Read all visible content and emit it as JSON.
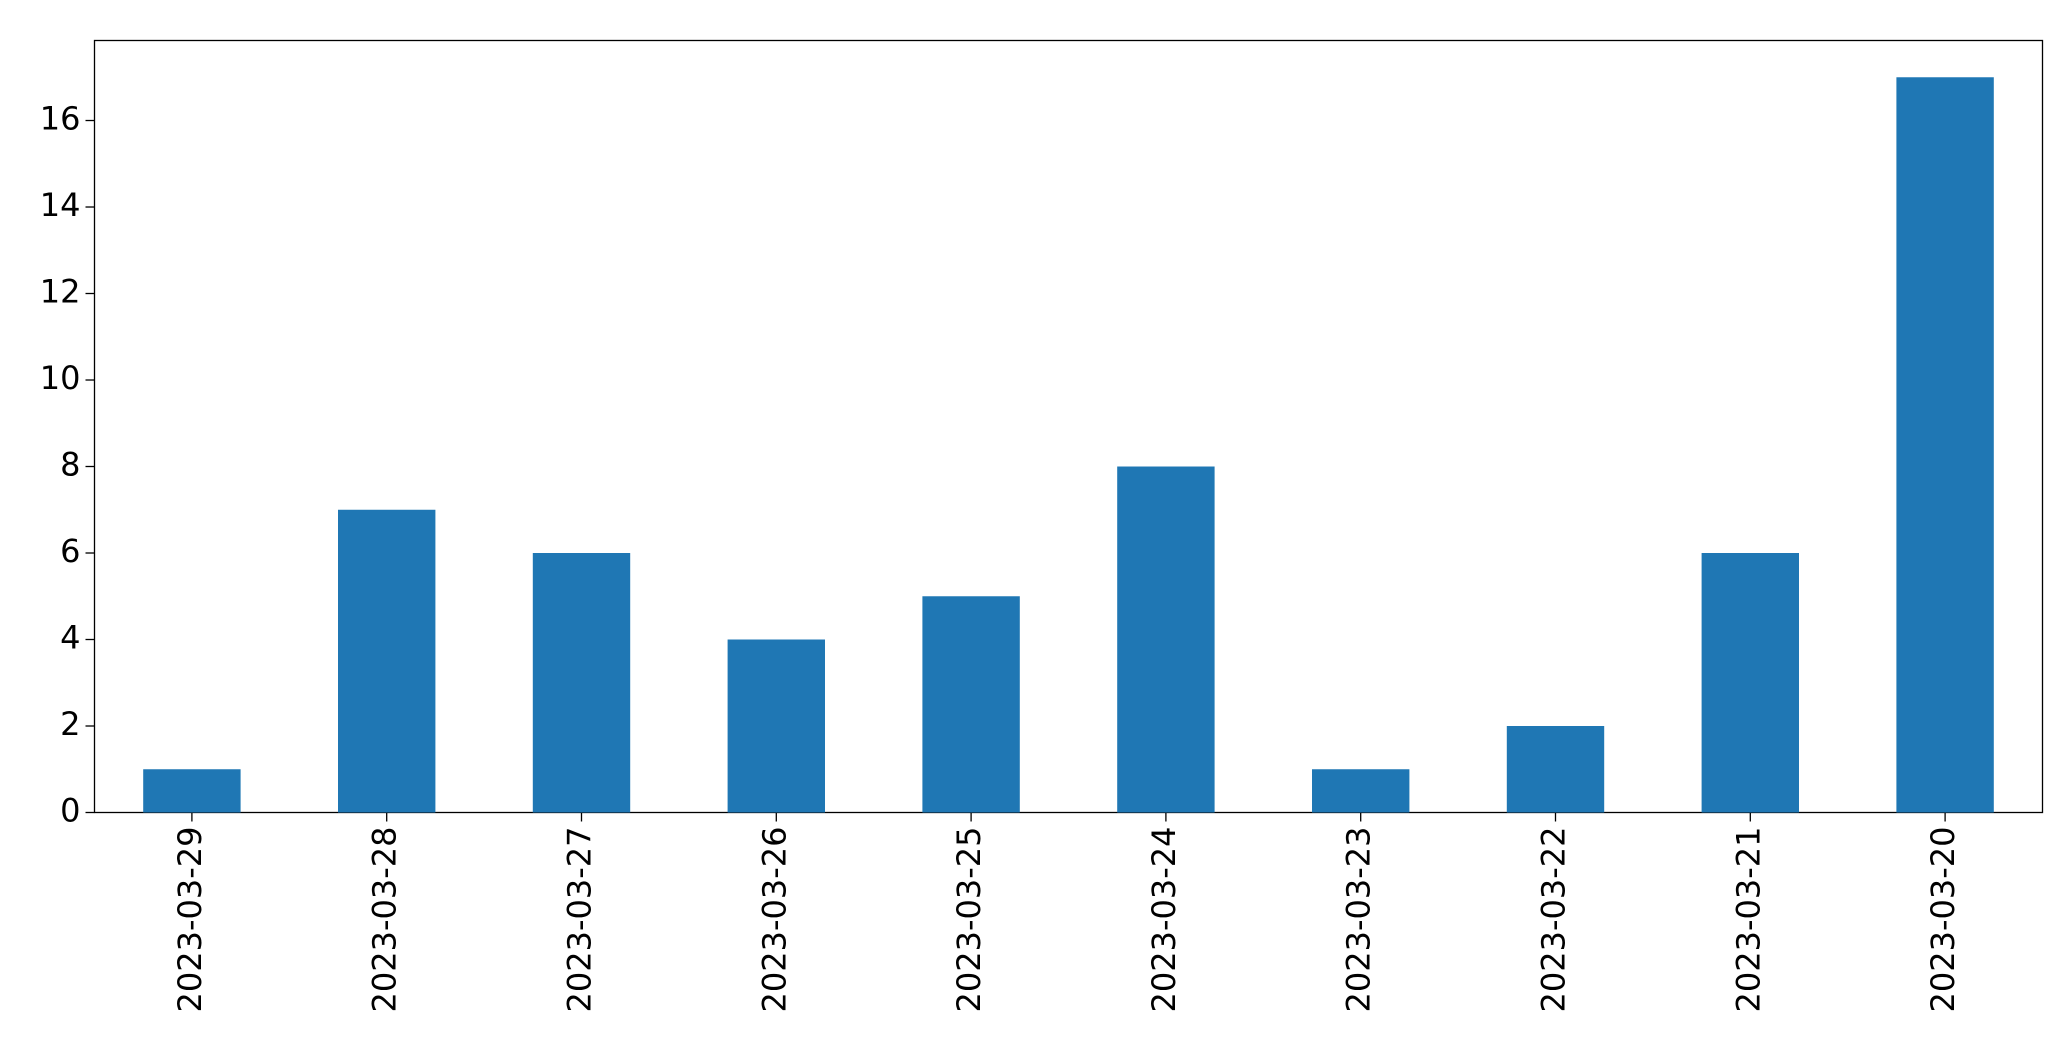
{
  "chart_data": {
    "type": "bar",
    "categories": [
      "2023-03-29",
      "2023-03-28",
      "2023-03-27",
      "2023-03-26",
      "2023-03-25",
      "2023-03-24",
      "2023-03-23",
      "2023-03-22",
      "2023-03-21",
      "2023-03-20"
    ],
    "values": [
      1,
      7,
      6,
      4,
      5,
      8,
      1,
      2,
      6,
      17
    ],
    "color": "#1f77b4",
    "ylim": [
      0,
      17.85
    ],
    "yticks": [
      0,
      2,
      4,
      6,
      8,
      10,
      12,
      14,
      16
    ],
    "grid": false
  }
}
